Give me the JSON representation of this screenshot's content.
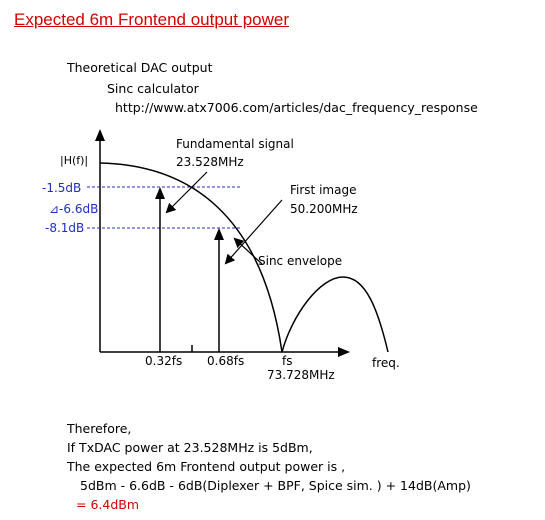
{
  "title": "Expected 6m Frontend output power",
  "header": {
    "line1": "Theoretical DAC output",
    "line2": "Sinc calculator",
    "line3": "http://www.atx7006.com/articles/dac_frequency_response"
  },
  "diagram": {
    "y_axis_label": "|H(f)|",
    "levels": {
      "fundamental": "-1.5dB",
      "delta": "⊿-6.6dB",
      "image": "-8.1dB"
    },
    "annotations": {
      "fundamental_line1": "Fundamental signal",
      "fundamental_line2": "23.528MHz",
      "image_line1": "First image",
      "image_line2": "50.200MHz",
      "sinc": "Sinc envelope"
    },
    "x_ticks": {
      "t1": "0.32fs",
      "t2": "0.68fs",
      "fs": "fs",
      "fs_value": "73.728MHz"
    },
    "x_axis_label": "freq.",
    "colors": {
      "dashed_level": "#1f2fbf",
      "axis": "#000000"
    }
  },
  "conclusion": {
    "line1": "Therefore,",
    "line2": "If TxDAC power at 23.528MHz is 5dBm,",
    "line3": "The expected 6m Frontend output power is ,",
    "line4": "5dBm - 6.6dB - 6dB(Diplexer + BPF, Spice sim. ) + 14dB(Amp)",
    "result": "= 6.4dBm"
  }
}
